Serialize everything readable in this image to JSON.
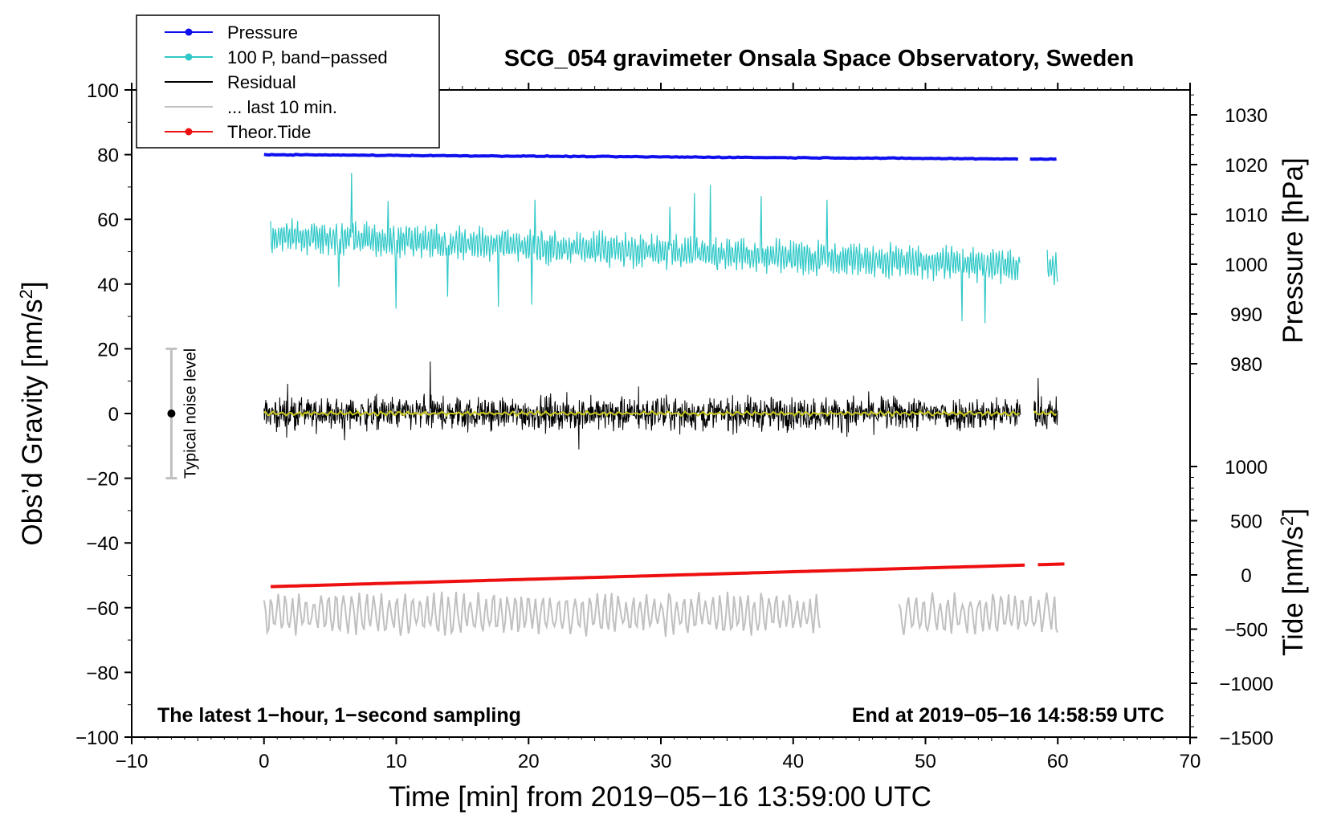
{
  "chart_data": {
    "type": "line",
    "title": "SCG_054 gravimeter Onsala Space Observatory, Sweden",
    "xlabel": "Time [min] from 2019−05−16 13:59:00 UTC",
    "ylabel_left": "Obs’d Gravity [nm/s",
    "ylabel_left_sup": "2",
    "ylabel_left_end": "]",
    "ylabel_right_pressure": "Pressure [hPa]",
    "ylabel_right_tide": "Tide [nm/s",
    "ylabel_right_tide_sup": "2",
    "ylabel_right_tide_end": "]",
    "xlim": [
      -10,
      70
    ],
    "ylim": [
      -100,
      100
    ],
    "x_ticks": [
      "−10",
      "0",
      "10",
      "20",
      "30",
      "40",
      "50",
      "60",
      "70"
    ],
    "x_tick_values": [
      -10,
      0,
      10,
      20,
      30,
      40,
      50,
      60,
      70
    ],
    "y_ticks": [
      "100",
      "80",
      "60",
      "40",
      "20",
      "0",
      "−20",
      "−40",
      "−60",
      "−80",
      "−100"
    ],
    "y_tick_values": [
      100,
      80,
      60,
      40,
      20,
      0,
      -20,
      -40,
      -60,
      -80,
      -100
    ],
    "pressure_ticks": [
      "1030",
      "1020",
      "1010",
      "1000",
      "990",
      "980"
    ],
    "pressure_tick_values": [
      1030,
      1020,
      1010,
      1000,
      990,
      980
    ],
    "tide_ticks": [
      "1000",
      "500",
      "0",
      "−500",
      "−1000",
      "−1500"
    ],
    "tide_tick_values": [
      1000,
      500,
      0,
      -500,
      -1000,
      -1500
    ],
    "legend": [
      {
        "label": "Pressure",
        "color": "#1010ee",
        "marker": true
      },
      {
        "label": "100 P, band−passed",
        "color": "#30c8c8",
        "marker": true
      },
      {
        "label": "Residual",
        "color": "#000000",
        "marker": false
      },
      {
        "label": "... last 10 min.",
        "color": "#c0c0c0",
        "marker": false
      },
      {
        "label": "Theor.Tide",
        "color": "#ee1010",
        "marker": true
      }
    ],
    "noise_label": "Typical noise level",
    "noise_range": [
      -20,
      20
    ],
    "annotation_left": "The latest 1−hour, 1−second sampling",
    "annotation_right": "End at 2019−05−16 14:58:59 UTC",
    "series": [
      {
        "name": "Pressure",
        "color": "#1010ee",
        "x_range": [
          0,
          60
        ],
        "gap": [
          57.1,
          57.9
        ],
        "y_start": 80,
        "y_end": 78.6
      },
      {
        "name": "100 P, band−passed",
        "color": "#30c8c8",
        "x_range": [
          0.5,
          60
        ],
        "gap": [
          57.2,
          59.2
        ],
        "y_center_start": 55,
        "y_center_end": 45,
        "amplitude": 5
      },
      {
        "name": "Residual",
        "color": "#000000",
        "x_range": [
          0,
          60
        ],
        "gap": [
          57.2,
          58.2
        ],
        "y_center": 0,
        "amplitude": 5
      },
      {
        "name": "Residual (smoothed)",
        "color": "#c8c820",
        "x_range": [
          0,
          60
        ],
        "gap": [
          57.2,
          58.2
        ],
        "y_center": 0,
        "amplitude": 0.8
      },
      {
        "name": "Theor.Tide",
        "color": "#ee1010",
        "x_range": [
          0.5,
          60.5
        ],
        "gap": [
          57.5,
          58.5
        ],
        "y_start": -53.5,
        "y_end": -46.5
      },
      {
        "name": "... last 10 min.",
        "color": "#c0c0c0",
        "segments": [
          [
            0,
            42
          ],
          [
            48,
            60
          ]
        ],
        "y_center": -62,
        "amplitude": 6
      }
    ]
  }
}
